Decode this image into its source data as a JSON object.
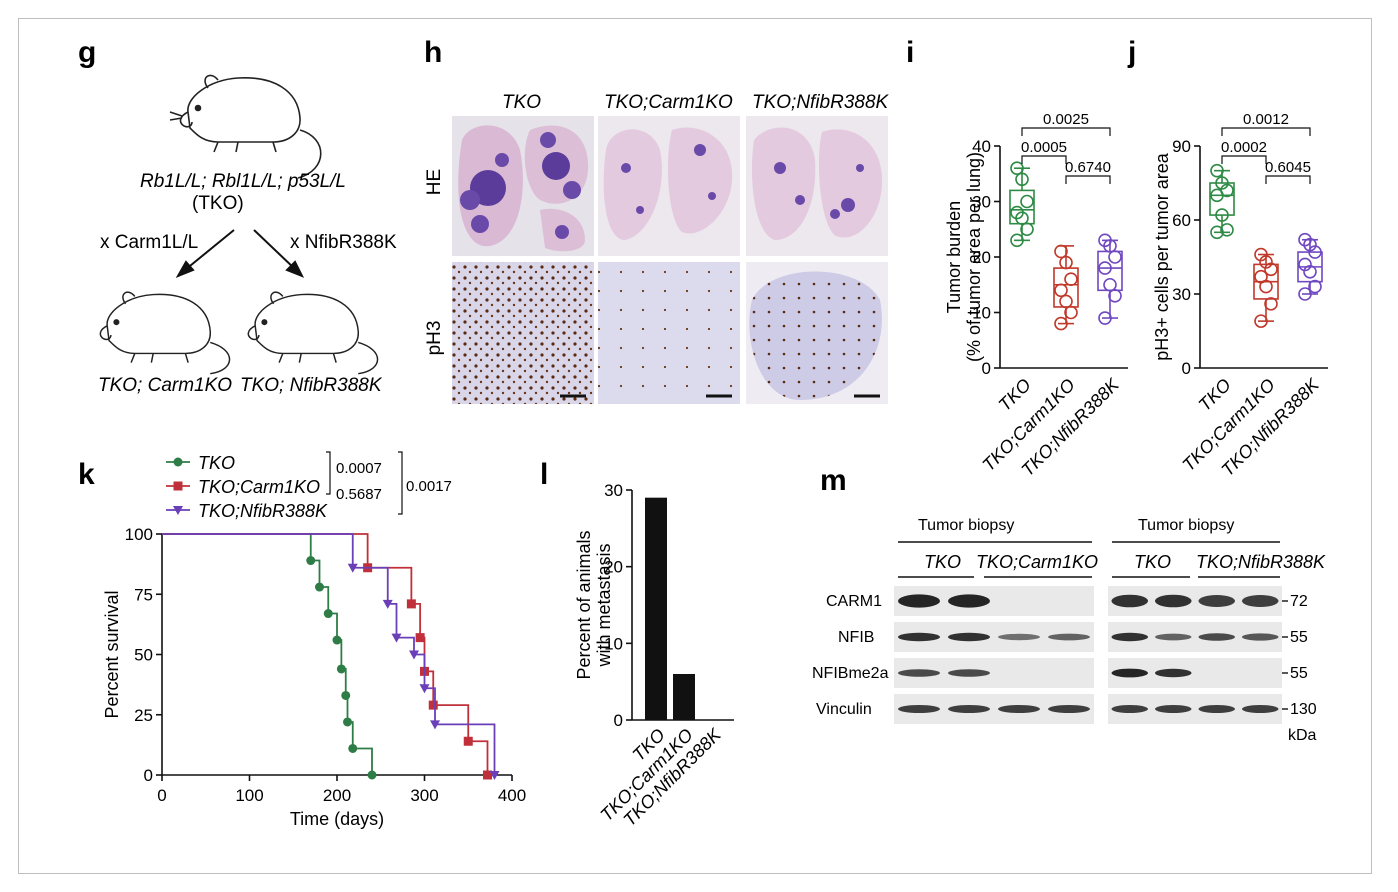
{
  "panels": {
    "g": {
      "label": "g",
      "parent_strain": "Rb1L/L; Rbl1L/L; p53L/L",
      "parent_name": "(TKO)",
      "cross_left": "x Carm1L/L",
      "cross_right": "x NfibR388K",
      "child_left": "TKO; Carm1KO",
      "child_right": "TKO; NfibR388K"
    },
    "h": {
      "label": "h",
      "columns": [
        "TKO",
        "TKO;Carm1KO",
        "TKO;NfibR388K"
      ],
      "rows": [
        "HE",
        "pH3"
      ]
    },
    "i": {
      "label": "i"
    },
    "j": {
      "label": "j"
    },
    "k": {
      "label": "k"
    },
    "l": {
      "label": "l"
    },
    "m": {
      "label": "m",
      "groups": [
        {
          "title": "Tumor biopsy",
          "genotypes": [
            "TKO",
            "TKO;Carm1KO"
          ]
        },
        {
          "title": "Tumor biopsy",
          "genotypes": [
            "TKO",
            "TKO;NfibR388K"
          ]
        }
      ],
      "proteins": [
        "CARM1",
        "NFIB",
        "NFIBme2a",
        "Vinculin"
      ],
      "markers": [
        "72",
        "55",
        "55",
        "130"
      ],
      "unit": "kDa"
    }
  },
  "chart_data": [
    {
      "id": "i",
      "type": "box",
      "ylabel": "Tumor burden (% of tumor area per lung)",
      "ylim": [
        0,
        40
      ],
      "yticks": [
        0,
        10,
        20,
        30,
        40
      ],
      "categories": [
        "TKO",
        "TKO;Carm1KO",
        "TKO;NfibR388K"
      ],
      "colors": [
        "#2e8b45",
        "#c0392b",
        "#7048c0"
      ],
      "points": [
        [
          36,
          34,
          30,
          28,
          27,
          25,
          23
        ],
        [
          21,
          19,
          16,
          14,
          12,
          10,
          8
        ],
        [
          23,
          22,
          20,
          18,
          15,
          13,
          9
        ]
      ],
      "box": [
        [
          23,
          26,
          28.5,
          32,
          36
        ],
        [
          8,
          11,
          15,
          18,
          22
        ],
        [
          9,
          14,
          18,
          21,
          23
        ]
      ],
      "pvalues": [
        {
          "a": 0,
          "b": 1,
          "text": "0.0005"
        },
        {
          "a": 1,
          "b": 2,
          "text": "0.6740"
        },
        {
          "a": 0,
          "b": 2,
          "text": "0.0025"
        }
      ]
    },
    {
      "id": "j",
      "type": "box",
      "ylabel": "pH3+ cells per tumor area",
      "ylim": [
        0,
        90
      ],
      "yticks": [
        0,
        30,
        60,
        90
      ],
      "categories": [
        "TKO",
        "TKO;Carm1KO",
        "TKO;NfibR388K"
      ],
      "colors": [
        "#2e8b45",
        "#c0392b",
        "#7048c0"
      ],
      "points": [
        [
          80,
          75,
          72,
          70,
          62,
          56,
          55
        ],
        [
          46,
          43,
          40,
          37,
          33,
          26,
          19
        ],
        [
          52,
          50,
          47,
          42,
          39,
          33,
          30
        ]
      ],
      "box": [
        [
          55,
          62,
          70,
          75,
          80
        ],
        [
          19,
          28,
          35,
          42,
          46
        ],
        [
          30,
          35,
          41,
          47,
          52
        ]
      ],
      "pvalues": [
        {
          "a": 0,
          "b": 1,
          "text": "0.0002"
        },
        {
          "a": 1,
          "b": 2,
          "text": "0.6045"
        },
        {
          "a": 0,
          "b": 2,
          "text": "0.0012"
        }
      ]
    },
    {
      "id": "k",
      "type": "line",
      "xlabel": "Time (days)",
      "ylabel": "Percent survival",
      "xlim": [
        0,
        400
      ],
      "ylim": [
        0,
        100
      ],
      "xticks": [
        0,
        100,
        200,
        300,
        400
      ],
      "yticks": [
        0,
        25,
        50,
        75,
        100
      ],
      "series": [
        {
          "name": "TKO",
          "color": "#2e7d46",
          "marker": "circle",
          "steps": [
            [
              0,
              100
            ],
            [
              170,
              89
            ],
            [
              180,
              78
            ],
            [
              190,
              67
            ],
            [
              200,
              56
            ],
            [
              205,
              44
            ],
            [
              210,
              33
            ],
            [
              212,
              22
            ],
            [
              218,
              11
            ],
            [
              240,
              0
            ]
          ]
        },
        {
          "name": "TKO;Carm1KO",
          "color": "#c0303a",
          "marker": "square",
          "steps": [
            [
              0,
              100
            ],
            [
              235,
              86
            ],
            [
              285,
              71
            ],
            [
              295,
              57
            ],
            [
              300,
              43
            ],
            [
              310,
              29
            ],
            [
              350,
              14
            ],
            [
              372,
              0
            ]
          ]
        },
        {
          "name": "TKO;NfibR388K",
          "color": "#6a3fb8",
          "marker": "triangle",
          "steps": [
            [
              0,
              100
            ],
            [
              218,
              86
            ],
            [
              258,
              71
            ],
            [
              268,
              57
            ],
            [
              288,
              50
            ],
            [
              300,
              36
            ],
            [
              312,
              21
            ],
            [
              380,
              0
            ]
          ]
        }
      ],
      "pvalues": [
        {
          "between": [
            "TKO",
            "TKO;Carm1KO"
          ],
          "text": "0.0007"
        },
        {
          "between": [
            "TKO;Carm1KO",
            "TKO;NfibR388K"
          ],
          "text": "0.5687"
        },
        {
          "between": [
            "TKO",
            "TKO;NfibR388K"
          ],
          "text": "0.0017"
        }
      ]
    },
    {
      "id": "l",
      "type": "bar",
      "ylabel": "Percent of animals with metastasis",
      "ylim": [
        0,
        30
      ],
      "yticks": [
        0,
        10,
        20,
        30
      ],
      "categories": [
        "TKO",
        "TKO;Carm1KO",
        "TKO;NfibR388K"
      ],
      "values": [
        29,
        6,
        0
      ]
    }
  ]
}
